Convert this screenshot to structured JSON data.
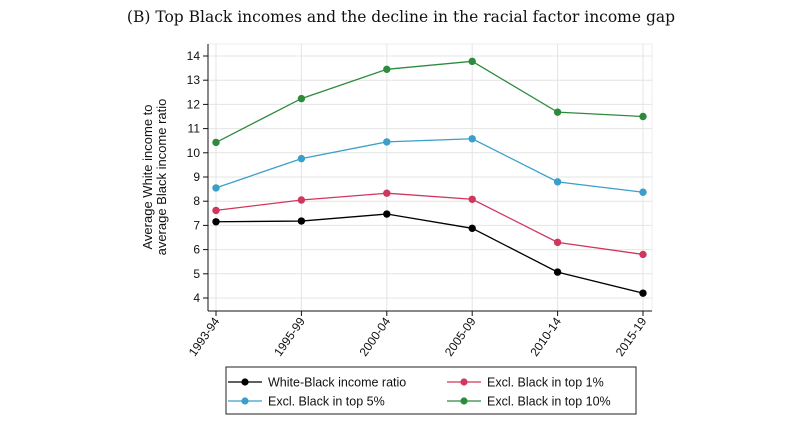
{
  "chart_data": {
    "type": "line",
    "title": "(B) Top Black incomes and the decline in the racial factor income gap",
    "ylabel_line1": "Average White income to",
    "ylabel_line2": "average Black income ratio",
    "xlabel": "",
    "categories": [
      "1993-94",
      "1995-99",
      "2000-04",
      "2005-09",
      "2010-14",
      "2015-19"
    ],
    "ylim": [
      4,
      14
    ],
    "yticks": [
      "4",
      "5",
      "6",
      "7",
      "8",
      "9",
      "10",
      "11",
      "12",
      "13",
      "14"
    ],
    "grid": true,
    "legend_position": "bottom",
    "series": [
      {
        "name": "White-Black income ratio",
        "color": "#000000",
        "values": [
          7.15,
          7.18,
          7.47,
          6.88,
          5.07,
          4.2
        ]
      },
      {
        "name": "Excl. Black in top 1%",
        "color": "#d1365e",
        "values": [
          7.62,
          8.05,
          8.33,
          8.08,
          6.3,
          5.8
        ]
      },
      {
        "name": "Excl. Black in top 5%",
        "color": "#3a9fc9",
        "values": [
          8.55,
          9.76,
          10.45,
          10.58,
          8.8,
          8.37
        ]
      },
      {
        "name": "Excl. Black in top 10%",
        "color": "#2e8b3e",
        "values": [
          10.43,
          12.24,
          13.45,
          13.78,
          11.68,
          11.5
        ]
      }
    ]
  }
}
